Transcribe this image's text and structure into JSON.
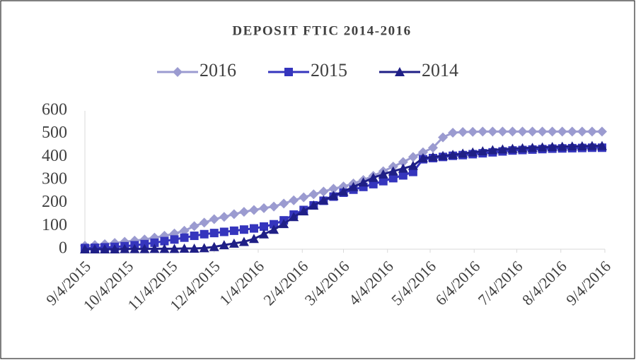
{
  "chart_data": {
    "type": "line",
    "title": "DEPOSIT FTIC 2014-2016",
    "x": [
      "2015-09-04",
      "2015-09-11",
      "2015-09-18",
      "2015-09-25",
      "2015-10-02",
      "2015-10-09",
      "2015-10-16",
      "2015-10-23",
      "2015-10-30",
      "2015-11-06",
      "2015-11-13",
      "2015-11-20",
      "2015-11-27",
      "2015-12-04",
      "2015-12-11",
      "2015-12-18",
      "2015-12-25",
      "2016-01-01",
      "2016-01-08",
      "2016-01-15",
      "2016-01-22",
      "2016-01-29",
      "2016-02-05",
      "2016-02-12",
      "2016-02-19",
      "2016-02-26",
      "2016-03-04",
      "2016-03-11",
      "2016-03-18",
      "2016-03-25",
      "2016-04-01",
      "2016-04-08",
      "2016-04-15",
      "2016-04-22",
      "2016-04-29",
      "2016-05-06",
      "2016-05-13",
      "2016-05-20",
      "2016-05-27",
      "2016-06-03",
      "2016-06-10",
      "2016-06-17",
      "2016-06-24",
      "2016-07-01",
      "2016-07-08",
      "2016-07-15",
      "2016-07-22",
      "2016-07-29",
      "2016-08-05",
      "2016-08-12",
      "2016-08-19",
      "2016-08-26",
      "2016-09-02"
    ],
    "series": [
      {
        "name": "2016",
        "color": "#9b9bd0",
        "marker": "diamond",
        "values": [
          15,
          18,
          22,
          27,
          32,
          37,
          42,
          50,
          58,
          68,
          80,
          100,
          115,
          130,
          140,
          152,
          162,
          170,
          178,
          185,
          198,
          212,
          225,
          238,
          250,
          262,
          272,
          285,
          300,
          318,
          338,
          358,
          378,
          400,
          420,
          440,
          485,
          505,
          508,
          509,
          510,
          510,
          510,
          510,
          510,
          510,
          510,
          510,
          510,
          510,
          510,
          510,
          510
        ]
      },
      {
        "name": "2015",
        "color": "#3535bd",
        "marker": "square",
        "values": [
          5,
          6,
          8,
          10,
          13,
          17,
          22,
          28,
          35,
          42,
          50,
          58,
          65,
          70,
          75,
          80,
          85,
          90,
          98,
          108,
          125,
          150,
          170,
          190,
          210,
          228,
          245,
          258,
          270,
          282,
          295,
          308,
          320,
          335,
          390,
          395,
          400,
          405,
          408,
          412,
          416,
          420,
          424,
          428,
          430,
          432,
          434,
          436,
          437,
          438,
          439,
          440,
          440
        ]
      },
      {
        "name": "2014",
        "color": "#1f1f86",
        "marker": "triangle",
        "values": [
          0,
          0,
          0,
          0,
          1,
          1,
          1,
          2,
          2,
          2,
          3,
          3,
          5,
          10,
          18,
          25,
          32,
          45,
          65,
          85,
          110,
          140,
          165,
          190,
          212,
          232,
          250,
          270,
          290,
          310,
          325,
          338,
          350,
          362,
          395,
          400,
          405,
          410,
          415,
          420,
          425,
          430,
          433,
          436,
          438,
          440,
          442,
          444,
          445,
          446,
          447,
          448,
          448
        ]
      }
    ],
    "xlim": [
      "2015-09-04",
      "2016-09-04"
    ],
    "xticks": [
      {
        "value": "2015-09-04",
        "label": "9/4/2015"
      },
      {
        "value": "2015-10-04",
        "label": "10/4/2015"
      },
      {
        "value": "2015-11-04",
        "label": "11/4/2015"
      },
      {
        "value": "2015-12-04",
        "label": "12/4/2015"
      },
      {
        "value": "2016-01-04",
        "label": "1/4/2016"
      },
      {
        "value": "2016-02-04",
        "label": "2/4/2016"
      },
      {
        "value": "2016-03-04",
        "label": "3/4/2016"
      },
      {
        "value": "2016-04-04",
        "label": "4/4/2016"
      },
      {
        "value": "2016-05-04",
        "label": "5/4/2016"
      },
      {
        "value": "2016-06-04",
        "label": "6/4/2016"
      },
      {
        "value": "2016-07-04",
        "label": "7/4/2016"
      },
      {
        "value": "2016-08-04",
        "label": "8/4/2016"
      },
      {
        "value": "2016-09-04",
        "label": "9/4/2016"
      }
    ],
    "ylim": [
      0,
      600
    ],
    "yticks": [
      0,
      100,
      200,
      300,
      400,
      500,
      600
    ],
    "grid": false,
    "legend": "top"
  }
}
